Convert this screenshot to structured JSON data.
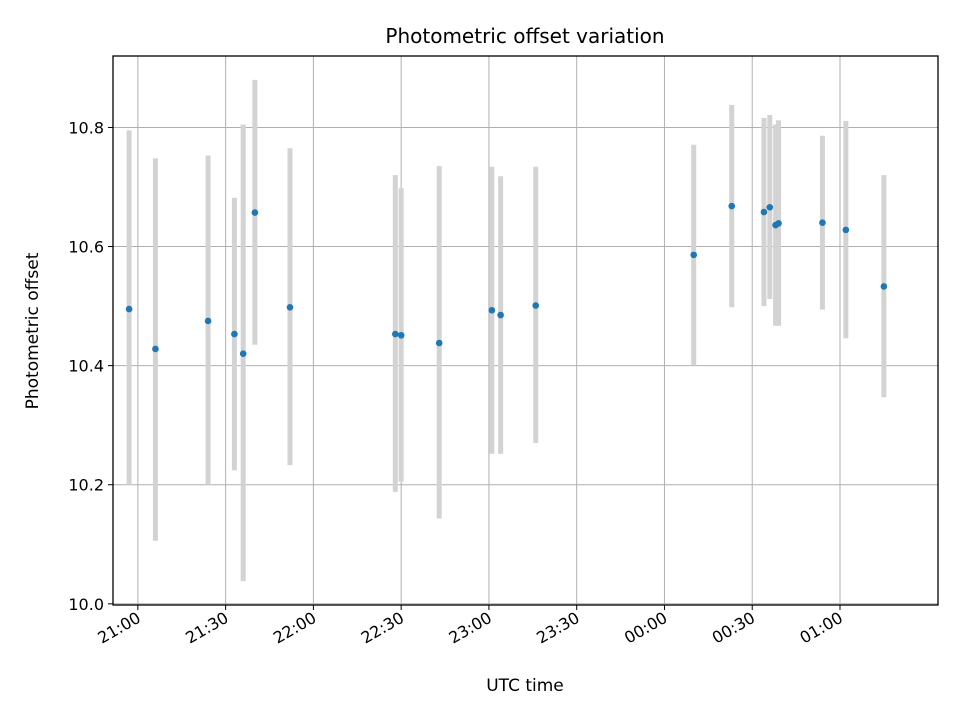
{
  "chart_data": {
    "type": "scatter",
    "title": "Photometric offset variation",
    "xlabel": "UTC time",
    "ylabel": "Photometric offset",
    "xlim": [
      "20:51:30",
      "01:33:30"
    ],
    "ylim": [
      9.998,
      10.92
    ],
    "x_ticks": [
      "21:00",
      "21:30",
      "22:00",
      "22:30",
      "23:00",
      "23:30",
      "00:00",
      "00:30",
      "01:00"
    ],
    "y_ticks": [
      10.0,
      10.2,
      10.4,
      10.6,
      10.8
    ],
    "y_tick_labels": [
      "10.0",
      "10.2",
      "10.4",
      "10.6",
      "10.8"
    ],
    "grid": true,
    "marker_color": "#1f77b4",
    "errorbar_color": "#d3d3d3",
    "points": [
      {
        "x": "20:57",
        "y": 10.495,
        "ylow": 10.2,
        "yhigh": 10.795
      },
      {
        "x": "21:06",
        "y": 10.428,
        "ylow": 10.106,
        "yhigh": 10.748
      },
      {
        "x": "21:24",
        "y": 10.475,
        "ylow": 10.2,
        "yhigh": 10.753
      },
      {
        "x": "21:33",
        "y": 10.453,
        "ylow": 10.224,
        "yhigh": 10.682
      },
      {
        "x": "21:36",
        "y": 10.42,
        "ylow": 10.038,
        "yhigh": 10.805
      },
      {
        "x": "21:40",
        "y": 10.657,
        "ylow": 10.435,
        "yhigh": 10.88
      },
      {
        "x": "21:52",
        "y": 10.498,
        "ylow": 10.233,
        "yhigh": 10.765
      },
      {
        "x": "22:28",
        "y": 10.453,
        "ylow": 10.188,
        "yhigh": 10.72
      },
      {
        "x": "22:30",
        "y": 10.451,
        "ylow": 10.205,
        "yhigh": 10.698
      },
      {
        "x": "22:43",
        "y": 10.438,
        "ylow": 10.143,
        "yhigh": 10.735
      },
      {
        "x": "23:01",
        "y": 10.493,
        "ylow": 10.252,
        "yhigh": 10.734
      },
      {
        "x": "23:04",
        "y": 10.485,
        "ylow": 10.252,
        "yhigh": 10.718
      },
      {
        "x": "23:16",
        "y": 10.501,
        "ylow": 10.27,
        "yhigh": 10.734
      },
      {
        "x": "00:10",
        "y": 10.586,
        "ylow": 10.4,
        "yhigh": 10.771
      },
      {
        "x": "00:23",
        "y": 10.668,
        "ylow": 10.498,
        "yhigh": 10.838
      },
      {
        "x": "00:34",
        "y": 10.658,
        "ylow": 10.5,
        "yhigh": 10.816
      },
      {
        "x": "00:36",
        "y": 10.666,
        "ylow": 10.512,
        "yhigh": 10.821
      },
      {
        "x": "00:38",
        "y": 10.636,
        "ylow": 10.467,
        "yhigh": 10.805
      },
      {
        "x": "00:39",
        "y": 10.639,
        "ylow": 10.467,
        "yhigh": 10.812
      },
      {
        "x": "00:54",
        "y": 10.64,
        "ylow": 10.494,
        "yhigh": 10.786
      },
      {
        "x": "01:02",
        "y": 10.628,
        "ylow": 10.446,
        "yhigh": 10.811
      },
      {
        "x": "01:15",
        "y": 10.533,
        "ylow": 10.347,
        "yhigh": 10.72
      }
    ]
  }
}
